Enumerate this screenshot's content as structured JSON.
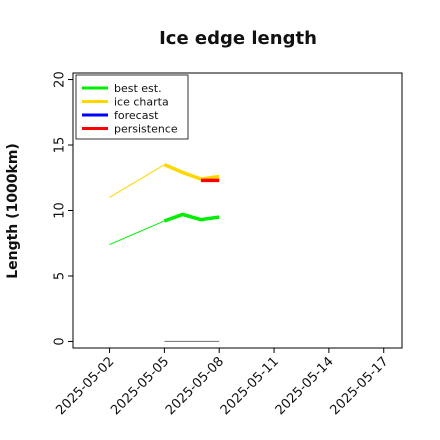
{
  "chart_data": {
    "type": "line",
    "title": "Ice edge length",
    "xlabel": "",
    "ylabel": "Length (1000km)",
    "ylim": [
      -0.5,
      20.5
    ],
    "yticks": [
      0,
      5,
      10,
      15,
      20
    ],
    "xlim": [
      "2025-04-30",
      "2025-05-18"
    ],
    "xticks": [
      "2025-05-02",
      "2025-05-05",
      "2025-05-08",
      "2025-05-11",
      "2025-05-14",
      "2025-05-17"
    ],
    "highlight_tick": "2025-05-08",
    "highlight_color": "#228b22",
    "legend_position": "upper-left",
    "grid": false,
    "series": [
      {
        "name": "best est.",
        "color": "#00ee00",
        "thin": {
          "x": [
            "2025-05-02",
            "2025-05-05"
          ],
          "y": [
            7.4,
            9.2
          ]
        },
        "thick": {
          "x": [
            "2025-05-05",
            "2025-05-06",
            "2025-05-07",
            "2025-05-08"
          ],
          "y": [
            9.2,
            9.7,
            9.3,
            9.5
          ]
        }
      },
      {
        "name": "ice charta",
        "color": "#ffd700",
        "thin": {
          "x": [
            "2025-05-02",
            "2025-05-05"
          ],
          "y": [
            11.0,
            13.5
          ]
        },
        "thick": {
          "x": [
            "2025-05-05",
            "2025-05-06",
            "2025-05-07",
            "2025-05-08"
          ],
          "y": [
            13.5,
            12.9,
            12.4,
            12.6
          ]
        }
      },
      {
        "name": "forecast",
        "color": "#0000ff",
        "thin": {
          "x": [],
          "y": []
        },
        "thick": {
          "x": [],
          "y": []
        }
      },
      {
        "name": "persistence",
        "color": "#ff0000",
        "thin": {
          "x": [],
          "y": []
        },
        "thick": {
          "x": [
            "2025-05-07",
            "2025-05-08"
          ],
          "y": [
            12.3,
            12.3
          ]
        }
      }
    ],
    "baseline": {
      "color": "#808080",
      "x": [
        "2025-05-05",
        "2025-05-08"
      ],
      "y": [
        0,
        0
      ]
    }
  }
}
